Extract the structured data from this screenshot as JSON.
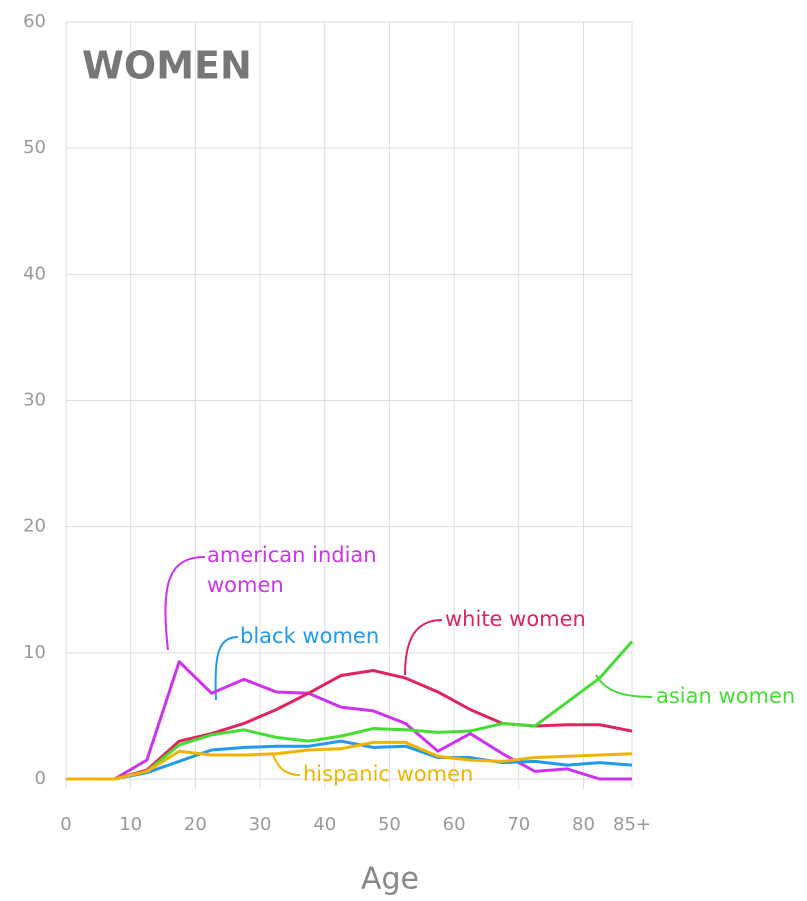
{
  "chart_data": {
    "type": "line",
    "title": "WOMEN",
    "xlabel": "Age",
    "x": [
      0,
      7.5,
      12.5,
      17.5,
      22.5,
      27.5,
      32.5,
      37.5,
      42.5,
      47.5,
      52.5,
      57.5,
      62.5,
      67.5,
      72.5,
      77.5,
      82.5,
      87.5
    ],
    "xlim": [
      0,
      87.5
    ],
    "xticks": [
      0,
      10,
      20,
      30,
      40,
      50,
      60,
      70,
      80,
      {
        "value": 87.5,
        "label": "85+"
      }
    ],
    "ylim": [
      0,
      60
    ],
    "yticks": [
      0,
      10,
      20,
      30,
      40,
      50,
      60
    ],
    "grid": true,
    "series": [
      {
        "name": "american indian women",
        "color": "#cc33ee",
        "values": [
          0,
          0,
          1.5,
          9.3,
          6.8,
          7.9,
          6.9,
          6.8,
          5.7,
          5.4,
          4.4,
          2.2,
          3.6,
          2.0,
          0.6,
          0.8,
          0,
          0
        ]
      },
      {
        "name": "white women",
        "color": "#e0245e",
        "values": [
          0,
          0,
          0.7,
          3.0,
          3.6,
          4.4,
          5.5,
          6.8,
          8.2,
          8.6,
          8.0,
          6.9,
          5.5,
          4.4,
          4.2,
          4.3,
          4.3,
          3.8
        ]
      },
      {
        "name": "asian women",
        "color": "#44dd33",
        "values": [
          0,
          0,
          0.6,
          2.7,
          3.5,
          3.9,
          3.3,
          3.0,
          3.4,
          4.0,
          3.9,
          3.7,
          3.8,
          4.4,
          4.2,
          6.1,
          8.0,
          10.9
        ]
      },
      {
        "name": "black women",
        "color": "#2299ee",
        "values": [
          0,
          0,
          0.5,
          1.4,
          2.3,
          2.5,
          2.6,
          2.6,
          3.0,
          2.5,
          2.6,
          1.7,
          1.7,
          1.3,
          1.4,
          1.1,
          1.3,
          1.1
        ]
      },
      {
        "name": "hispanic women",
        "color": "#f0b400",
        "values": [
          0,
          0,
          0.6,
          2.2,
          1.9,
          1.9,
          2.0,
          2.3,
          2.4,
          2.9,
          2.9,
          1.8,
          1.5,
          1.4,
          1.7,
          1.8,
          1.9,
          2.0
        ]
      }
    ]
  }
}
